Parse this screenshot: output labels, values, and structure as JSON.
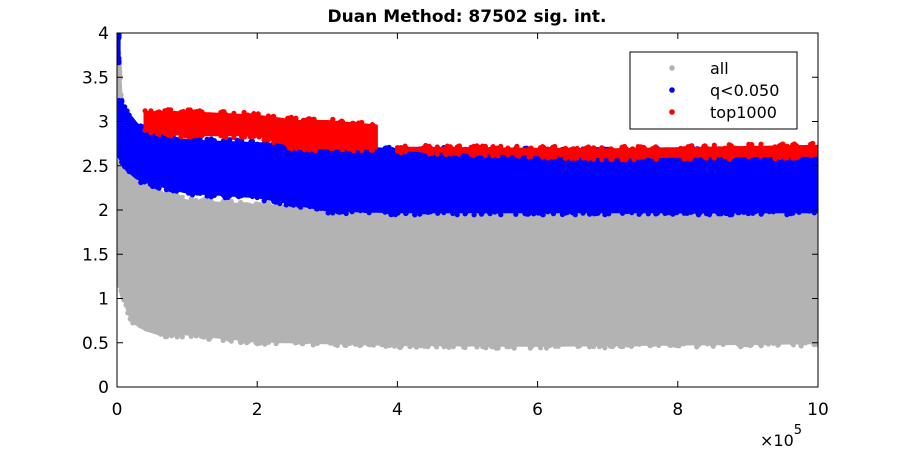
{
  "chart_data": {
    "type": "scatter",
    "title": "Duan Method: 87502 sig. int.",
    "xlabel": "",
    "ylabel": "",
    "xlim": [
      0,
      1000000
    ],
    "ylim": [
      0,
      4
    ],
    "x_ticks": [
      0,
      200000,
      400000,
      600000,
      800000,
      1000000
    ],
    "x_tick_labels": [
      "0",
      "2",
      "4",
      "6",
      "8",
      "10"
    ],
    "x_exponent_label": "×10",
    "x_exponent_power": "5",
    "y_ticks": [
      0,
      0.5,
      1,
      1.5,
      2,
      2.5,
      3,
      3.5,
      4
    ],
    "y_tick_labels": [
      "0",
      "0.5",
      "1",
      "1.5",
      "2",
      "2.5",
      "3",
      "3.5",
      "4"
    ],
    "grid": false,
    "legend_position": "top-right",
    "series": [
      {
        "name": "all",
        "color": "#b3b3b3",
        "marker": "dot",
        "description_bands": [
          {
            "x": [
              0,
              10000
            ],
            "y_low": [
              1.3,
              1.0
            ],
            "y_high": [
              4.0,
              2.8
            ]
          },
          {
            "x": [
              10000,
              20000,
              40000,
              60000,
              100000,
              200000,
              400000,
              600000,
              1000000
            ],
            "y_low": [
              1.0,
              0.75,
              0.65,
              0.6,
              0.6,
              0.52,
              0.48,
              0.47,
              0.5
            ],
            "y_high": [
              2.8,
              2.5,
              2.3,
              2.2,
              2.1,
              2.05,
              2.0,
              2.0,
              2.0
            ]
          }
        ]
      },
      {
        "name": "q<0.050",
        "color": "#0000ff",
        "marker": "dot",
        "description_bands": [
          {
            "x": [
              0,
              3000
            ],
            "y_low": [
              3.7,
              3.7
            ],
            "y_high": [
              3.95,
              3.95
            ]
          },
          {
            "x": [
              3000,
              15000,
              30000,
              60000,
              100000,
              200000,
              300000,
              400000,
              700000,
              1000000
            ],
            "y_low": [
              2.6,
              2.45,
              2.35,
              2.28,
              2.2,
              2.15,
              2.0,
              1.98,
              1.98,
              1.98
            ],
            "y_high": [
              3.25,
              3.1,
              2.95,
              2.85,
              2.78,
              2.75,
              2.72,
              2.68,
              2.66,
              2.66
            ]
          }
        ]
      },
      {
        "name": "top1000",
        "color": "#ff0000",
        "marker": "dot",
        "description_bands": [
          {
            "x": [
              40000,
              100000,
              200000,
              260000,
              300000,
              370000
            ],
            "y_low": [
              2.9,
              2.85,
              2.85,
              2.7,
              2.7,
              2.7
            ],
            "y_high": [
              3.1,
              3.1,
              3.06,
              3.0,
              3.0,
              2.95
            ]
          },
          {
            "x": [
              400000,
              700000,
              1000000
            ],
            "y_low": [
              2.68,
              2.6,
              2.62
            ],
            "y_high": [
              2.7,
              2.68,
              2.72
            ]
          }
        ]
      }
    ]
  }
}
